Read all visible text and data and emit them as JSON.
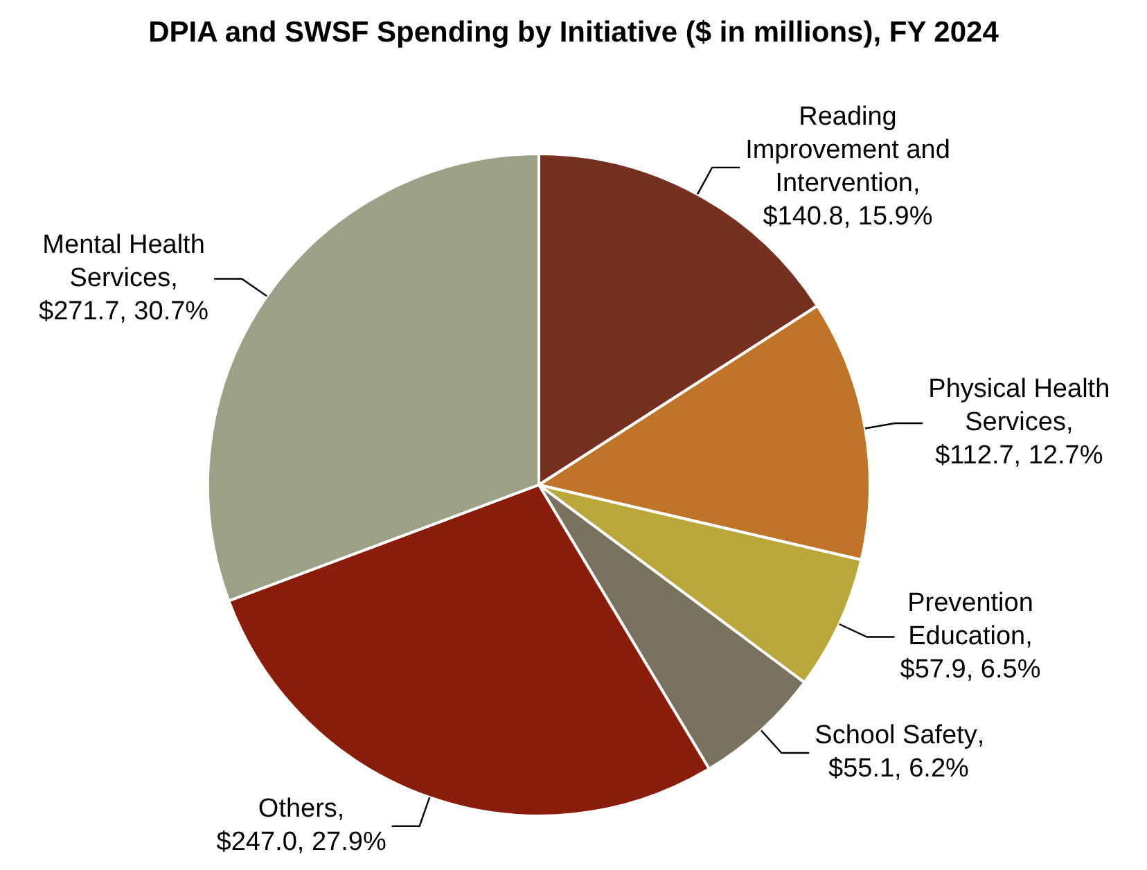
{
  "chart_data": {
    "type": "pie",
    "title": "DPIA and SWSF Spending by Initiative ($ in millions), FY 2024",
    "categories": [
      "Reading Improvement and Intervention",
      "Physical Health Services",
      "Prevention Education",
      "School Safety",
      "Others",
      "Mental Health Services"
    ],
    "values": [
      140.8,
      112.7,
      57.9,
      55.1,
      247.0,
      271.7
    ],
    "colors": [
      "#76301f",
      "#bf7428",
      "#b9a73a",
      "#7a725e",
      "#8a1c0a",
      "#9ca084"
    ],
    "value_labels": [
      ", $140.8, 15.9%",
      ", $112.7, 12.7%",
      ", $57.9, 6.5%",
      ", $55.1, 6.2%",
      ", $247.0, 27.9%",
      ", $271.7, 30.7%"
    ],
    "legend": false
  }
}
